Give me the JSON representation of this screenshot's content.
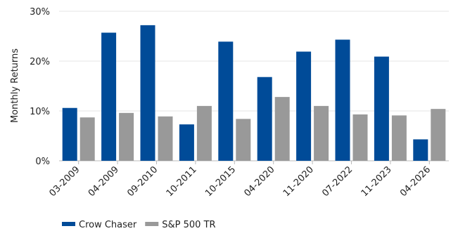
{
  "chart_data": {
    "type": "bar",
    "ylabel": "Monthly Returns",
    "ylim": [
      0,
      30
    ],
    "yticks": [
      "0%",
      "10%",
      "20%",
      "30%"
    ],
    "categories": [
      "03-2009",
      "04-2009",
      "09-2010",
      "10-2011",
      "10-2015",
      "04-2020",
      "11-2020",
      "07-2022",
      "11-2023",
      "04-2026"
    ],
    "series": [
      {
        "name": "Crow Chaser",
        "color": "#004b98",
        "values": [
          10.6,
          25.7,
          27.2,
          7.3,
          23.9,
          16.8,
          21.9,
          24.3,
          20.9,
          4.3
        ]
      },
      {
        "name": "S&P 500 TR",
        "color": "#999999",
        "values": [
          8.7,
          9.6,
          8.9,
          11.0,
          8.4,
          12.8,
          11.0,
          9.3,
          9.1,
          10.4
        ]
      }
    ],
    "grid": true,
    "legend": "bottom-left"
  }
}
